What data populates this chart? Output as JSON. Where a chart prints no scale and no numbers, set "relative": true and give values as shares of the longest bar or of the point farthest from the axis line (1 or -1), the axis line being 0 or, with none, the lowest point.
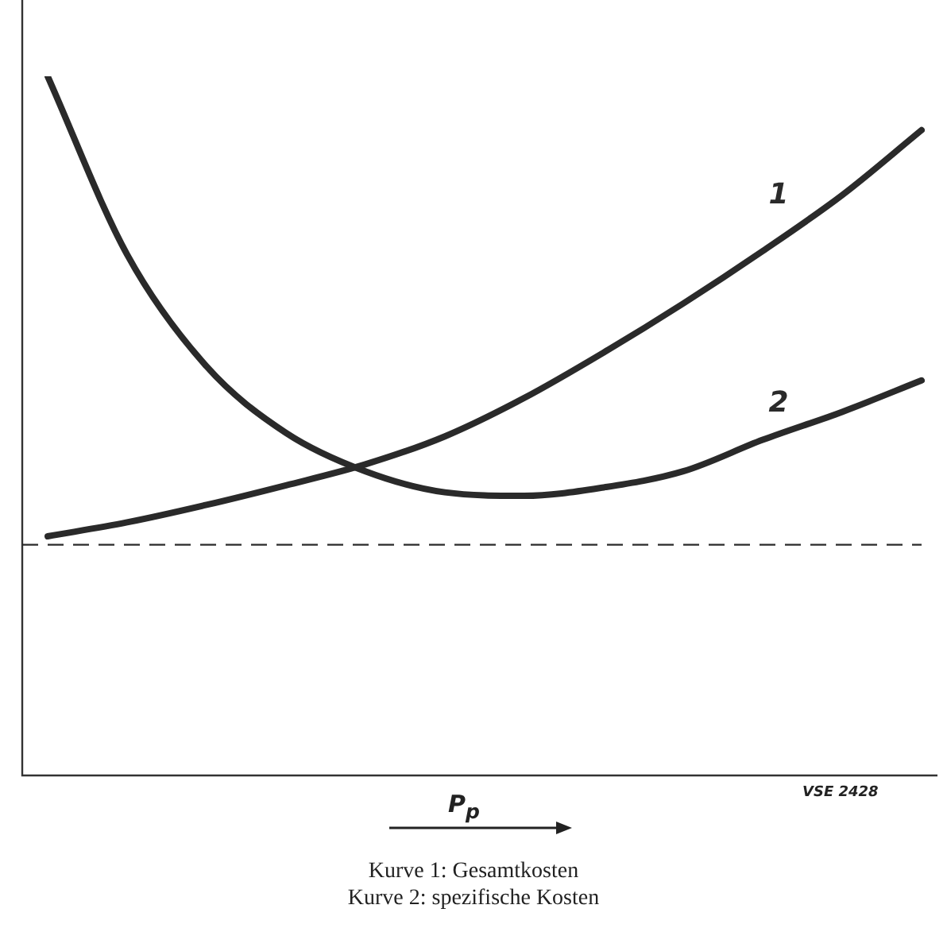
{
  "chart_data": {
    "type": "line",
    "relative": true,
    "xlabel": "P$_{p}$",
    "categories": [
      null,
      null,
      null,
      null,
      null,
      null,
      null,
      null,
      null,
      null,
      null,
      null
    ],
    "series": [
      {
        "name": "1",
        "color": "#2a2a2a",
        "values": [
          0.342,
          0.362,
          0.387,
          0.415,
          0.445,
          0.485,
          0.54,
          0.605,
          0.675,
          0.75,
          0.83,
          0.923
        ]
      },
      {
        "name": "2",
        "color": "#2a2a2a",
        "values": [
          1.0,
          0.745,
          0.585,
          0.49,
          0.435,
          0.405,
          0.4,
          0.412,
          0.435,
          0.48,
          0.52,
          0.565
        ]
      }
    ],
    "ref_lines": [
      {
        "axis": "y",
        "value": 0.33,
        "color": "#2a2a2a",
        "line_style": "dashed"
      }
    ],
    "annotations": [
      "VSE 2428",
      "Kurve 1: Gesamtkosten",
      "Kurve 2: spezifische Kosten"
    ],
    "legend": false,
    "marker": "none",
    "line_style": "solid"
  }
}
